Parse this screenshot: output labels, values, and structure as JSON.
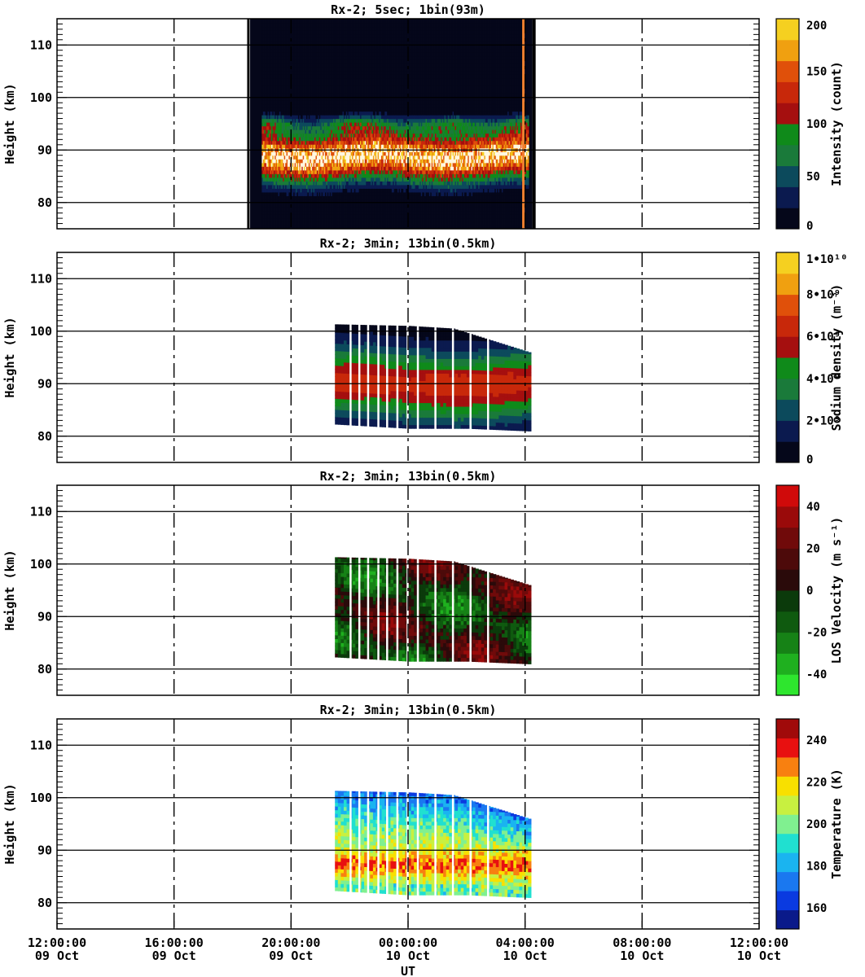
{
  "x_axis": {
    "label": "UT",
    "ticks": [
      {
        "time": "12:00:00",
        "date": "09 Oct"
      },
      {
        "time": "16:00:00",
        "date": "09 Oct"
      },
      {
        "time": "20:00:00",
        "date": "09 Oct"
      },
      {
        "time": "00:00:00",
        "date": "10 Oct"
      },
      {
        "time": "04:00:00",
        "date": "10 Oct"
      },
      {
        "time": "08:00:00",
        "date": "10 Oct"
      },
      {
        "time": "12:00:00",
        "date": "10 Oct"
      }
    ],
    "range_hours": [
      0,
      24
    ]
  },
  "y_axis": {
    "label": "Height (km)",
    "ticks": [
      "80",
      "90",
      "100",
      "110"
    ],
    "range_km": [
      75,
      115
    ]
  },
  "colors": {
    "frame": "#000000",
    "background": "#ffffff"
  },
  "chart_data": [
    {
      "type": "heatmap",
      "title": "Rx-2;  5sec; 1bin(93m)",
      "ylabel": "Height (km)",
      "xlabel": "",
      "colorbar": {
        "label": "Intensity (count)",
        "tick_labels": [
          "0",
          "50",
          "100",
          "150",
          "200"
        ],
        "tick_values": [
          0,
          50,
          100,
          150,
          200
        ],
        "range": [
          0,
          200
        ],
        "colors": [
          "#05071a",
          "#0b1a4f",
          "#0c4a5c",
          "#1a7a3a",
          "#0f8a1a",
          "#a50f0f",
          "#c8280a",
          "#e0500a",
          "#f0a010",
          "#f5d020"
        ]
      },
      "data_window_hours": [
        7.0,
        16.1
      ],
      "features": {
        "layer_peak_km": 88.5,
        "layer_top_km": 95,
        "layer_bottom_km": 84
      }
    },
    {
      "type": "heatmap",
      "title": "Rx-2; 3min; 13bin(0.5km)",
      "ylabel": "Height (km)",
      "xlabel": "",
      "colorbar": {
        "label": "Sodium density (m⁻³)",
        "tick_labels": [
          "0",
          "2•10⁹",
          "4•10⁹",
          "6•10⁹",
          "8•10⁹",
          "1•10¹⁰"
        ],
        "tick_values": [
          0,
          2000000000.0,
          4000000000.0,
          6000000000.0,
          8000000000.0,
          10000000000.0
        ],
        "range": [
          0,
          10000000000.0
        ],
        "colors": [
          "#05071a",
          "#0b1a4f",
          "#0c4a5c",
          "#1a7a3a",
          "#0f8a1a",
          "#a50f0f",
          "#c8280a",
          "#e0500a",
          "#f0a010",
          "#f5d020"
        ]
      },
      "data_window_hours": [
        9.5,
        16.1
      ],
      "top_boundary": [
        {
          "t": 9.5,
          "km": 101.3
        },
        {
          "t": 12.0,
          "km": 101.0
        },
        {
          "t": 13.5,
          "km": 100.5
        },
        {
          "t": 16.1,
          "km": 96.0
        }
      ],
      "bottom_boundary": [
        {
          "t": 9.5,
          "km": 82.3
        },
        {
          "t": 12.0,
          "km": 81.5
        },
        {
          "t": 14.0,
          "km": 81.5
        },
        {
          "t": 16.1,
          "km": 81.0
        }
      ]
    },
    {
      "type": "heatmap",
      "title": "Rx-2; 3min; 13bin(0.5km)",
      "ylabel": "Height (km)",
      "xlabel": "",
      "colorbar": {
        "label": "LOS Velocity (m s⁻¹)",
        "tick_labels": [
          "-40",
          "-20",
          "0",
          "20",
          "40"
        ],
        "tick_values": [
          -40,
          -20,
          0,
          20,
          40
        ],
        "range": [
          -50,
          50
        ],
        "colors": [
          "#2ee62e",
          "#1fb01f",
          "#168216",
          "#0f5a0f",
          "#0b3a0b",
          "#2a0a0a",
          "#4d0a0a",
          "#700a0a",
          "#9a0a0a",
          "#d00a0a"
        ]
      },
      "data_window_hours": [
        9.5,
        16.1
      ],
      "top_boundary": [
        {
          "t": 9.5,
          "km": 101.3
        },
        {
          "t": 12.0,
          "km": 101.0
        },
        {
          "t": 13.5,
          "km": 100.5
        },
        {
          "t": 16.1,
          "km": 96.0
        }
      ],
      "bottom_boundary": [
        {
          "t": 9.5,
          "km": 82.3
        },
        {
          "t": 12.0,
          "km": 81.5
        },
        {
          "t": 14.0,
          "km": 81.5
        },
        {
          "t": 16.1,
          "km": 81.0
        }
      ]
    },
    {
      "type": "heatmap",
      "title": "Rx-2; 3min; 13bin(0.5km)",
      "ylabel": "Height (km)",
      "xlabel": "UT",
      "colorbar": {
        "label": "Temperature (K)",
        "tick_labels": [
          "160",
          "180",
          "200",
          "220",
          "240"
        ],
        "tick_values": [
          160,
          180,
          200,
          220,
          240
        ],
        "range": [
          150,
          250
        ],
        "colors": [
          "#0a1a8a",
          "#0a3ae0",
          "#1a78f0",
          "#1ab4f0",
          "#20e0d0",
          "#80f090",
          "#c8f040",
          "#f8e000",
          "#f88010",
          "#e81010",
          "#a00a0a"
        ]
      },
      "data_window_hours": [
        9.5,
        16.1
      ],
      "top_boundary": [
        {
          "t": 9.5,
          "km": 101.3
        },
        {
          "t": 12.0,
          "km": 101.0
        },
        {
          "t": 13.5,
          "km": 100.5
        },
        {
          "t": 16.1,
          "km": 96.0
        }
      ],
      "bottom_boundary": [
        {
          "t": 9.5,
          "km": 82.3
        },
        {
          "t": 12.0,
          "km": 81.5
        },
        {
          "t": 14.0,
          "km": 81.5
        },
        {
          "t": 16.1,
          "km": 81.0
        }
      ]
    }
  ]
}
